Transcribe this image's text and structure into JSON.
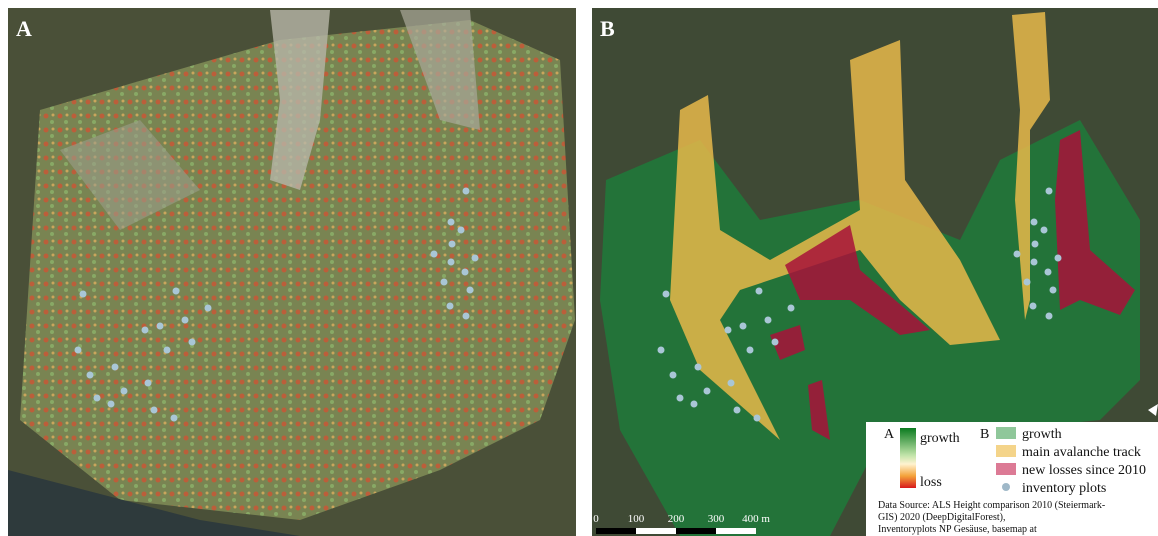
{
  "panels": [
    {
      "label": "A"
    },
    {
      "label": "B"
    }
  ],
  "legend": {
    "a": {
      "label": "A",
      "top": "growth",
      "bottom": "loss"
    },
    "b": {
      "label": "B",
      "items": [
        "growth",
        "main avalanche track",
        "new losses since 2010",
        "inventory plots"
      ]
    }
  },
  "scale_bar": {
    "ticks": [
      "0",
      "100",
      "200",
      "300",
      "400 m"
    ]
  },
  "source": [
    "Data Source: ALS Height comparison 2010 (Steiermark-",
    "GIS) 2020 (DeepDigitalForest),",
    "Inventoryplots NP Gesäuse, basemap at"
  ]
}
